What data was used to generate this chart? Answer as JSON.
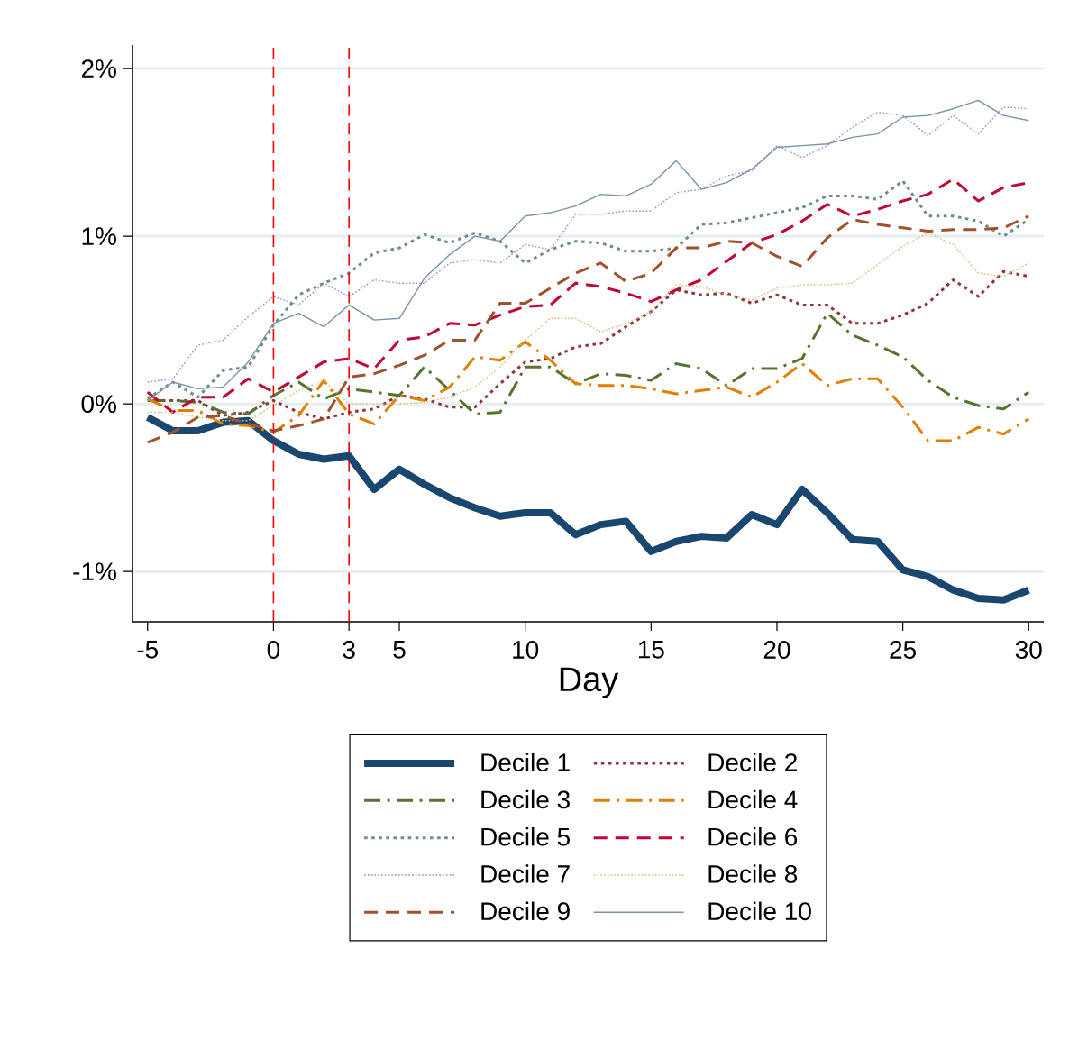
{
  "chart_data": {
    "type": "line",
    "xlabel": "Day",
    "x": [
      -5,
      -4,
      -3,
      -2,
      -1,
      0,
      1,
      2,
      3,
      4,
      5,
      6,
      7,
      8,
      9,
      10,
      11,
      12,
      13,
      14,
      15,
      16,
      17,
      18,
      19,
      20,
      21,
      22,
      23,
      24,
      25,
      26,
      27,
      28,
      29,
      30
    ],
    "xlim": [
      -5.6,
      30.6
    ],
    "xticks": [
      -5,
      0,
      3,
      5,
      10,
      15,
      20,
      25,
      30
    ],
    "ylim": [
      -1.3,
      2.14
    ],
    "yticks": [
      {
        "value": -1,
        "label": "-1%"
      },
      {
        "value": 0,
        "label": "0%"
      },
      {
        "value": 1,
        "label": "1%"
      },
      {
        "value": 2,
        "label": "2%"
      }
    ],
    "grid": "y",
    "legend": "bottom",
    "ref_lines": [
      {
        "axis": "x",
        "value": 0,
        "color": "#ff0000",
        "line_style": "dashed"
      },
      {
        "axis": "x",
        "value": 3,
        "color": "#ff0000",
        "line_style": "dashed"
      }
    ],
    "series": [
      {
        "name": "Decile 1",
        "color": "#1a476f",
        "line_style": "solid",
        "values": [
          -0.08,
          -0.16,
          -0.16,
          -0.11,
          -0.1,
          -0.22,
          -0.3,
          -0.33,
          -0.31,
          -0.51,
          -0.39,
          -0.48,
          -0.56,
          -0.62,
          -0.67,
          -0.65,
          -0.65,
          -0.78,
          -0.72,
          -0.7,
          -0.88,
          -0.82,
          -0.79,
          -0.8,
          -0.66,
          -0.72,
          -0.51,
          -0.65,
          -0.81,
          -0.82,
          -0.99,
          -1.03,
          -1.11,
          -1.16,
          -1.17,
          -1.11
        ]
      },
      {
        "name": "Decile 2",
        "color": "#90353b",
        "line_style": "dotted",
        "values": [
          0.02,
          0.02,
          0.02,
          -0.07,
          -0.05,
          0.02,
          -0.05,
          -0.09,
          -0.05,
          -0.03,
          0.05,
          0.03,
          -0.02,
          -0.02,
          0.12,
          0.25,
          0.27,
          0.34,
          0.36,
          0.46,
          0.55,
          0.68,
          0.65,
          0.66,
          0.6,
          0.65,
          0.59,
          0.59,
          0.48,
          0.48,
          0.53,
          0.6,
          0.74,
          0.64,
          0.79,
          0.76
        ]
      },
      {
        "name": "Decile 3",
        "color": "#55752f",
        "line_style": "dashdot",
        "values": [
          0.02,
          0.02,
          0.01,
          -0.05,
          -0.06,
          0.05,
          0.13,
          0.03,
          0.09,
          0.07,
          0.05,
          0.22,
          0.08,
          -0.06,
          -0.05,
          0.22,
          0.22,
          0.12,
          0.18,
          0.17,
          0.14,
          0.24,
          0.21,
          0.11,
          0.21,
          0.21,
          0.27,
          0.54,
          0.41,
          0.35,
          0.28,
          0.14,
          0.04,
          -0.01,
          -0.03,
          0.07
        ]
      },
      {
        "name": "Decile 4",
        "color": "#e37e00",
        "line_style": "dashdot",
        "values": [
          0.03,
          -0.04,
          -0.04,
          -0.12,
          -0.13,
          -0.17,
          -0.07,
          0.14,
          -0.06,
          -0.12,
          0.05,
          0.02,
          0.1,
          0.28,
          0.26,
          0.37,
          0.26,
          0.12,
          0.11,
          0.11,
          0.09,
          0.06,
          0.08,
          0.1,
          0.04,
          0.13,
          0.24,
          0.11,
          0.15,
          0.15,
          -0.02,
          -0.22,
          -0.22,
          -0.14,
          -0.18,
          -0.09
        ]
      },
      {
        "name": "Decile 5",
        "color": "#6e8e84",
        "line_style": "dotted",
        "values": [
          0.03,
          0.13,
          0.04,
          0.2,
          0.22,
          0.47,
          0.65,
          0.72,
          0.78,
          0.9,
          0.93,
          1.01,
          0.96,
          1.02,
          0.97,
          0.84,
          0.92,
          0.97,
          0.96,
          0.91,
          0.91,
          0.93,
          1.07,
          1.08,
          1.11,
          1.14,
          1.17,
          1.24,
          1.24,
          1.22,
          1.33,
          1.12,
          1.12,
          1.09,
          1.0,
          1.1
        ]
      },
      {
        "name": "Decile 6",
        "color": "#c10534",
        "line_style": "dashed",
        "values": [
          0.07,
          -0.05,
          0.04,
          0.04,
          0.15,
          0.07,
          0.16,
          0.25,
          0.27,
          0.21,
          0.38,
          0.4,
          0.48,
          0.47,
          0.53,
          0.58,
          0.59,
          0.72,
          0.7,
          0.66,
          0.61,
          0.68,
          0.74,
          0.85,
          0.96,
          1.01,
          1.09,
          1.19,
          1.12,
          1.16,
          1.21,
          1.25,
          1.34,
          1.21,
          1.29,
          1.32
        ]
      },
      {
        "name": "Decile 7",
        "color": "#938dd2",
        "line_style": "dotted",
        "values": [
          0.13,
          0.15,
          0.35,
          0.38,
          0.52,
          0.64,
          0.59,
          0.72,
          0.64,
          0.74,
          0.72,
          0.72,
          0.84,
          0.86,
          0.84,
          0.95,
          0.92,
          1.13,
          1.13,
          1.15,
          1.15,
          1.26,
          1.28,
          1.36,
          1.39,
          1.54,
          1.47,
          1.54,
          1.65,
          1.74,
          1.72,
          1.6,
          1.72,
          1.61,
          1.77,
          1.76
        ]
      },
      {
        "name": "Decile 8",
        "color": "#cac27e",
        "line_style": "dotted",
        "values": [
          -0.05,
          -0.05,
          -0.08,
          -0.1,
          -0.1,
          -0.01,
          0.08,
          0.14,
          0.0,
          0.0,
          0.0,
          0.01,
          0.04,
          0.1,
          0.22,
          0.38,
          0.51,
          0.51,
          0.43,
          0.48,
          0.55,
          0.71,
          0.7,
          0.65,
          0.62,
          0.69,
          0.71,
          0.71,
          0.72,
          0.83,
          0.94,
          1.02,
          0.95,
          0.78,
          0.76,
          0.84
        ]
      },
      {
        "name": "Decile 9",
        "color": "#a0522d",
        "line_style": "dashed",
        "values": [
          -0.23,
          -0.17,
          -0.08,
          -0.07,
          -0.12,
          -0.16,
          -0.13,
          -0.09,
          0.16,
          0.18,
          0.23,
          0.29,
          0.38,
          0.38,
          0.6,
          0.6,
          0.69,
          0.78,
          0.84,
          0.73,
          0.78,
          0.93,
          0.93,
          0.97,
          0.96,
          0.88,
          0.82,
          0.99,
          1.1,
          1.07,
          1.05,
          1.03,
          1.04,
          1.04,
          1.05,
          1.12
        ]
      },
      {
        "name": "Decile 10",
        "color": "#7b92a8",
        "line_style": "solid",
        "values": [
          0.02,
          0.13,
          0.09,
          0.1,
          0.25,
          0.48,
          0.54,
          0.46,
          0.59,
          0.5,
          0.51,
          0.75,
          0.89,
          1.0,
          0.97,
          1.12,
          1.14,
          1.18,
          1.25,
          1.24,
          1.31,
          1.45,
          1.28,
          1.32,
          1.4,
          1.53,
          1.54,
          1.55,
          1.59,
          1.61,
          1.71,
          1.72,
          1.76,
          1.81,
          1.72,
          1.69
        ]
      }
    ]
  }
}
